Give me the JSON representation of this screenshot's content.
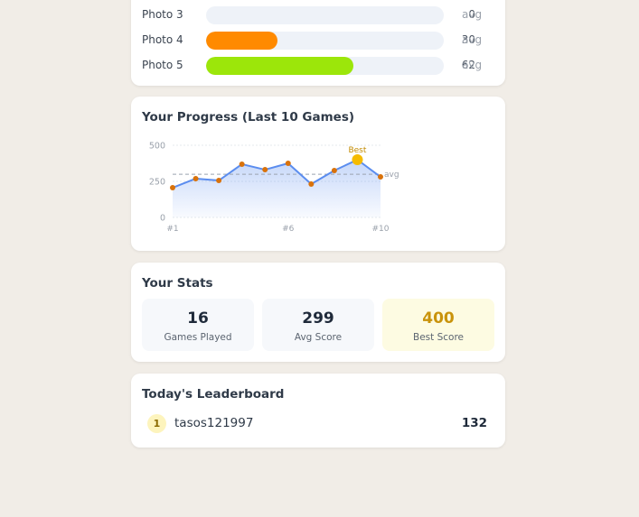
{
  "photo_scores": {
    "unit": "avg",
    "xlim": [
      0,
      100
    ],
    "rows": [
      {
        "label": "Photo 3",
        "value": 0
      },
      {
        "label": "Photo 4",
        "value": 30,
        "color": "#ff8a00"
      },
      {
        "label": "Photo 5",
        "value": 62,
        "color": "#9ce60a"
      }
    ]
  },
  "chart_data": {
    "type": "line",
    "title": "Your Progress (Last 10 Games)",
    "categories": [
      "#1",
      null,
      null,
      null,
      null,
      "#6",
      null,
      null,
      null,
      "#10"
    ],
    "values": [
      206,
      269,
      256,
      369,
      331,
      375,
      231,
      325,
      400,
      281
    ],
    "ylim": [
      0,
      500
    ],
    "yticks": [
      0,
      250,
      500
    ],
    "color": "#5b8def",
    "point_color": "#d9720b",
    "best_color": "#f5bb00",
    "best_label": "Best",
    "average": 299,
    "average_label": "avg"
  },
  "stats": {
    "title": "Your Stats",
    "items": [
      {
        "value": 16,
        "label": "Games Played"
      },
      {
        "value": 299,
        "label": "Avg Score"
      },
      {
        "value": 400,
        "label": "Best Score"
      }
    ]
  },
  "leaderboard": {
    "title": "Today's Leaderboard",
    "entries": [
      {
        "rank": 1,
        "name": "tasos121997",
        "score": 132
      }
    ]
  }
}
